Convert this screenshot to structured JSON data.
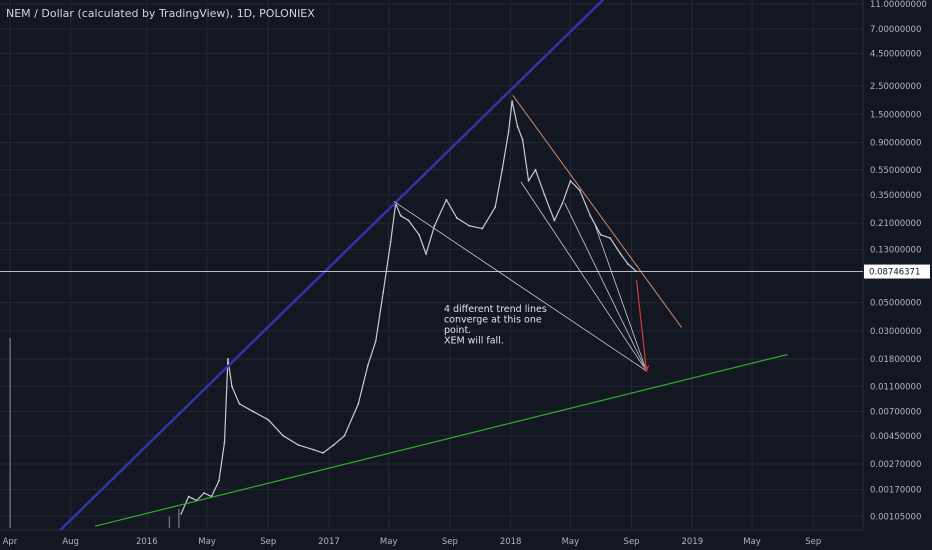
{
  "chart_data": {
    "type": "line",
    "title": "NEM / Dollar (calculated by TradingView), 1D, POLONIEX",
    "y_scale": "log",
    "ylim": [
      0.00085,
      11.0
    ],
    "y_ticks": [
      {
        "value": 11.0,
        "label": "11.00000000"
      },
      {
        "value": 7.0,
        "label": "7.00000000"
      },
      {
        "value": 4.5,
        "label": "4.50000000"
      },
      {
        "value": 2.5,
        "label": "2.50000000"
      },
      {
        "value": 1.5,
        "label": "1.50000000"
      },
      {
        "value": 0.9,
        "label": "0.90000000"
      },
      {
        "value": 0.55,
        "label": "0.55000000"
      },
      {
        "value": 0.35,
        "label": "0.35000000"
      },
      {
        "value": 0.21,
        "label": "0.21000000"
      },
      {
        "value": 0.13,
        "label": "0.13000000"
      },
      {
        "value": 0.05,
        "label": "0.05000000"
      },
      {
        "value": 0.03,
        "label": "0.03000000"
      },
      {
        "value": 0.018,
        "label": "0.01800000"
      },
      {
        "value": 0.011,
        "label": "0.01100000"
      },
      {
        "value": 0.007,
        "label": "0.00700000"
      },
      {
        "value": 0.0045,
        "label": "0.00450000"
      },
      {
        "value": 0.0027,
        "label": "0.00270000"
      },
      {
        "value": 0.0017,
        "label": "0.00170000"
      },
      {
        "value": 0.00105,
        "label": "0.00105000"
      }
    ],
    "x_ticks": [
      {
        "date": "2015-04-01",
        "label": "Apr"
      },
      {
        "date": "2015-08-01",
        "label": "Aug"
      },
      {
        "date": "2016-01-01",
        "label": "2016"
      },
      {
        "date": "2016-05-01",
        "label": "May"
      },
      {
        "date": "2016-09-01",
        "label": "Sep"
      },
      {
        "date": "2017-01-01",
        "label": "2017"
      },
      {
        "date": "2017-05-01",
        "label": "May"
      },
      {
        "date": "2017-09-01",
        "label": "Sep"
      },
      {
        "date": "2018-01-01",
        "label": "2018"
      },
      {
        "date": "2018-05-01",
        "label": "May"
      },
      {
        "date": "2018-09-01",
        "label": "Sep"
      },
      {
        "date": "2019-01-01",
        "label": "2019"
      },
      {
        "date": "2019-05-01",
        "label": "May"
      },
      {
        "date": "2019-09-01",
        "label": "Sep"
      }
    ],
    "xlim": [
      "2015-03-12",
      "2019-12-10"
    ],
    "current_price": {
      "value": 0.08746371,
      "label": "0.08746371"
    },
    "series": [
      {
        "values": [
          {
            "x": "2016-03-10",
            "y": 0.0011
          },
          {
            "x": "2016-03-25",
            "y": 0.0015
          },
          {
            "x": "2016-04-10",
            "y": 0.0014
          },
          {
            "x": "2016-04-25",
            "y": 0.0016
          },
          {
            "x": "2016-05-10",
            "y": 0.0015
          },
          {
            "x": "2016-05-25",
            "y": 0.002
          },
          {
            "x": "2016-06-05",
            "y": 0.004
          },
          {
            "x": "2016-06-12",
            "y": 0.018
          },
          {
            "x": "2016-06-20",
            "y": 0.011
          },
          {
            "x": "2016-07-05",
            "y": 0.008
          },
          {
            "x": "2016-08-01",
            "y": 0.007
          },
          {
            "x": "2016-09-01",
            "y": 0.006
          },
          {
            "x": "2016-10-01",
            "y": 0.0045
          },
          {
            "x": "2016-11-01",
            "y": 0.0038
          },
          {
            "x": "2016-12-01",
            "y": 0.0035
          },
          {
            "x": "2016-12-20",
            "y": 0.0033
          },
          {
            "x": "2017-01-10",
            "y": 0.0038
          },
          {
            "x": "2017-02-01",
            "y": 0.0045
          },
          {
            "x": "2017-03-01",
            "y": 0.008
          },
          {
            "x": "2017-03-20",
            "y": 0.016
          },
          {
            "x": "2017-04-05",
            "y": 0.025
          },
          {
            "x": "2017-04-20",
            "y": 0.06
          },
          {
            "x": "2017-05-05",
            "y": 0.15
          },
          {
            "x": "2017-05-15",
            "y": 0.3
          },
          {
            "x": "2017-05-25",
            "y": 0.24
          },
          {
            "x": "2017-06-10",
            "y": 0.22
          },
          {
            "x": "2017-07-01",
            "y": 0.17
          },
          {
            "x": "2017-07-15",
            "y": 0.12
          },
          {
            "x": "2017-08-01",
            "y": 0.2
          },
          {
            "x": "2017-08-25",
            "y": 0.32
          },
          {
            "x": "2017-09-15",
            "y": 0.23
          },
          {
            "x": "2017-10-10",
            "y": 0.2
          },
          {
            "x": "2017-11-05",
            "y": 0.19
          },
          {
            "x": "2017-12-01",
            "y": 0.28
          },
          {
            "x": "2017-12-15",
            "y": 0.55
          },
          {
            "x": "2017-12-28",
            "y": 1.1
          },
          {
            "x": "2018-01-04",
            "y": 1.9
          },
          {
            "x": "2018-01-15",
            "y": 1.2
          },
          {
            "x": "2018-01-25",
            "y": 0.95
          },
          {
            "x": "2018-02-06",
            "y": 0.45
          },
          {
            "x": "2018-02-20",
            "y": 0.55
          },
          {
            "x": "2018-03-10",
            "y": 0.35
          },
          {
            "x": "2018-03-30",
            "y": 0.22
          },
          {
            "x": "2018-04-15",
            "y": 0.3
          },
          {
            "x": "2018-05-01",
            "y": 0.45
          },
          {
            "x": "2018-05-20",
            "y": 0.38
          },
          {
            "x": "2018-06-10",
            "y": 0.24
          },
          {
            "x": "2018-07-01",
            "y": 0.17
          },
          {
            "x": "2018-07-20",
            "y": 0.16
          },
          {
            "x": "2018-08-10",
            "y": 0.12
          },
          {
            "x": "2018-08-25",
            "y": 0.1
          },
          {
            "x": "2018-09-10",
            "y": 0.088
          }
        ]
      }
    ],
    "volume": [
      {
        "x": "2015-04-01",
        "v": 1.0
      },
      {
        "x": "2016-02-15",
        "v": 0.06
      },
      {
        "x": "2016-03-05",
        "v": 0.1
      }
    ],
    "trend_lines": [
      {
        "color": "#2f35a8",
        "width": 2.5,
        "from": {
          "x": "2015-07-01",
          "y": 0.00075
        },
        "to": {
          "x": "2018-07-05",
          "y": 11.8
        }
      },
      {
        "color": "#2faa2f",
        "width": 1.2,
        "from": {
          "x": "2015-09-20",
          "y": 0.00088
        },
        "to": {
          "x": "2019-07-10",
          "y": 0.0195
        }
      },
      {
        "color": "#c98a6b",
        "width": 1,
        "from": {
          "x": "2018-01-06",
          "y": 2.1
        },
        "to": {
          "x": "2018-12-10",
          "y": 0.032
        }
      },
      {
        "color": "#c9ccd6",
        "width": 0.8,
        "from": {
          "x": "2017-05-12",
          "y": 0.31
        },
        "to": {
          "x": "2018-10-01",
          "y": 0.0145
        }
      },
      {
        "color": "#c9ccd6",
        "width": 0.8,
        "from": {
          "x": "2018-01-22",
          "y": 0.44
        },
        "to": {
          "x": "2018-10-01",
          "y": 0.0145
        }
      },
      {
        "color": "#c9ccd6",
        "width": 0.8,
        "from": {
          "x": "2018-04-20",
          "y": 0.3
        },
        "to": {
          "x": "2018-10-01",
          "y": 0.0145
        }
      },
      {
        "color": "#c9ccd6",
        "width": 0.8,
        "from": {
          "x": "2018-06-20",
          "y": 0.2
        },
        "to": {
          "x": "2018-10-01",
          "y": 0.0145
        }
      }
    ],
    "arrow": {
      "color": "#d43a3a",
      "from": {
        "x": "2018-09-11",
        "y": 0.075
      },
      "to": {
        "x": "2018-10-01",
        "y": 0.0145
      }
    },
    "annotation": {
      "lines": [
        "4 different trend lines",
        "converge at this one",
        "point.",
        "XEM will fall."
      ],
      "anchor": {
        "x": "2017-08-20",
        "y": 0.042
      }
    },
    "grid": true,
    "colors": {
      "background": "#131722",
      "grid": "#232837",
      "price": "#c8cbd4",
      "volume": "#6b6f7a",
      "current_price_line": "#d1d4dc",
      "current_price_badge": "#ffffff"
    }
  }
}
